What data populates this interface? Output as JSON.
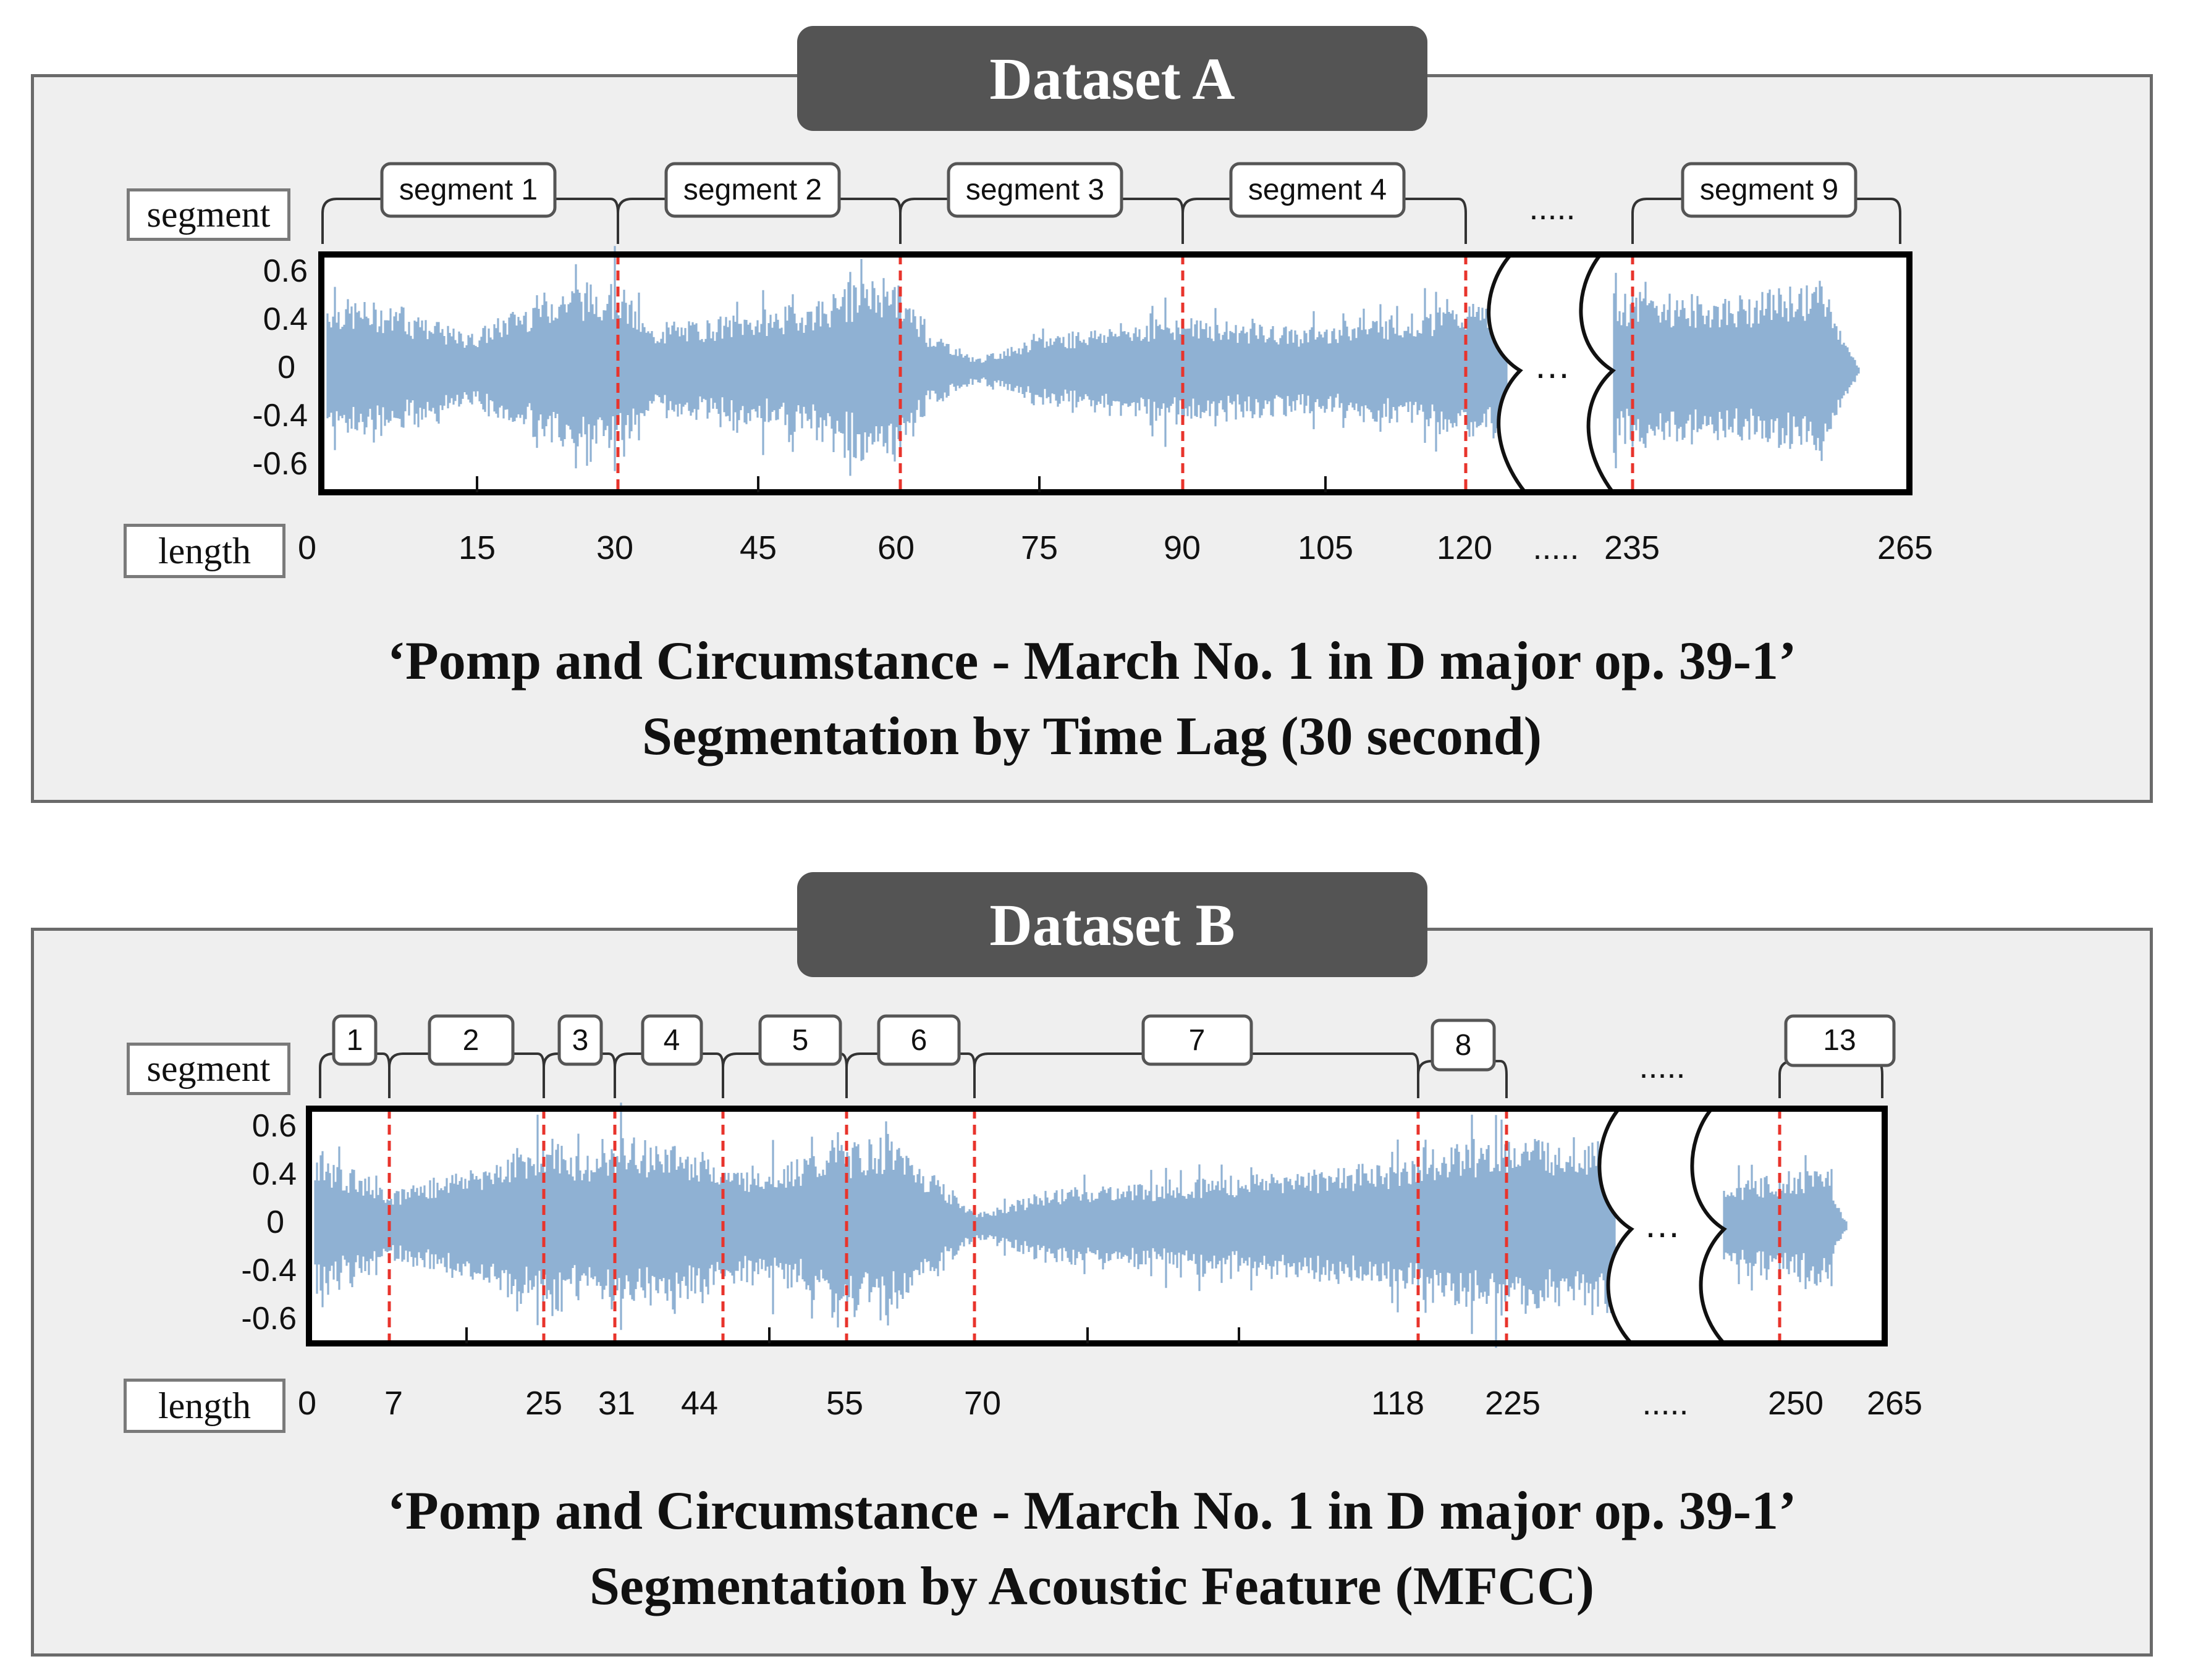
{
  "panel_a": {
    "title": "Dataset A",
    "segment_box": "segment",
    "length_box": "length",
    "caption_line1": "‘Pomp and Circumstance - March No. 1 in D major op. 39-1’",
    "caption_line2": "Segmentation by Time Lag (30 second)",
    "y_ticks": [
      "0.6",
      "0.4",
      "0",
      "-0.4",
      "-0.6"
    ],
    "segments": [
      "segment 1",
      "segment 2",
      "segment 3",
      "segment 4",
      "segment 9"
    ],
    "x_ticks": [
      "0",
      "15",
      "30",
      "45",
      "60",
      "75",
      "90",
      "105",
      "120",
      ".....",
      "235",
      "265"
    ],
    "ellipsis_top": ".....",
    "ellipsis_break": "…"
  },
  "panel_b": {
    "title": "Dataset B",
    "segment_box": "segment",
    "length_box": "length",
    "caption_line1": "‘Pomp and Circumstance - March No. 1 in D major op. 39-1’",
    "caption_line2": "Segmentation by Acoustic Feature (MFCC)",
    "y_ticks": [
      "0.6",
      "0.4",
      "0",
      "-0.4",
      "-0.6"
    ],
    "segments": [
      "1",
      "2",
      "3",
      "4",
      "5",
      "6",
      "7",
      "8",
      "13"
    ],
    "x_ticks": [
      "0",
      "7",
      "25",
      "31",
      "44",
      "55",
      "70",
      "118",
      "225",
      ".....",
      "250",
      "265"
    ],
    "ellipsis_top": ".....",
    "ellipsis_break": "…"
  },
  "colors": {
    "waveform": "#8fb1d3",
    "boundary": "#e8342c",
    "tab": "#545454",
    "panel": "#efefef"
  }
}
